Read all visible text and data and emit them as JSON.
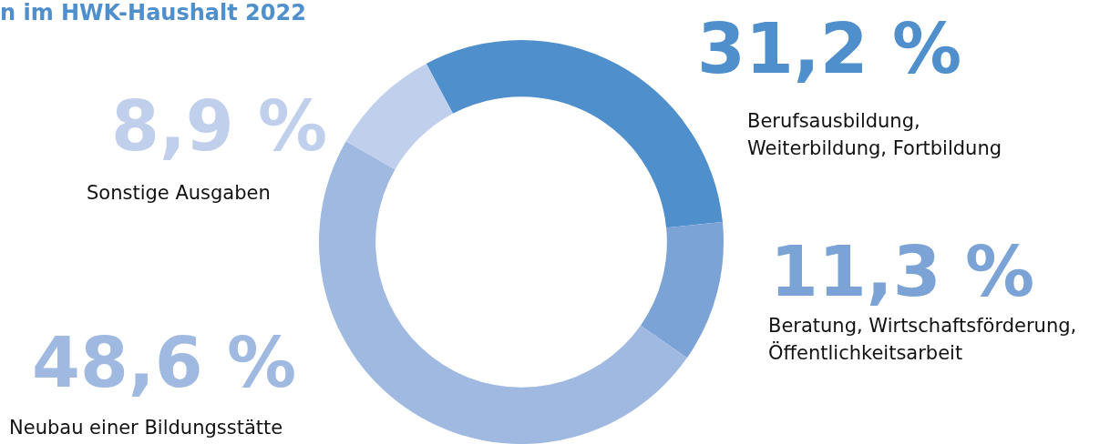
{
  "chart_data": {
    "type": "donut",
    "title": "n im HWK-Haushalt 2022",
    "categories": [
      "Berufsausbildung, Weiterbildung, Fortbildung",
      "Beratung, Wirtschaftsförderung, Öffentlichkeitsarbeit",
      "Neubau einer Bildungsstätte",
      "Sonstige Ausgaben"
    ],
    "values": [
      31.2,
      11.3,
      48.6,
      8.9
    ],
    "colors": [
      "#4e8fcc",
      "#7ba3d6",
      "#a0b9e0",
      "#c0d0ec"
    ],
    "value_labels": [
      "31,2 %",
      "11,3 %",
      "48,6 %",
      "8,9 %"
    ],
    "legend": false
  }
}
